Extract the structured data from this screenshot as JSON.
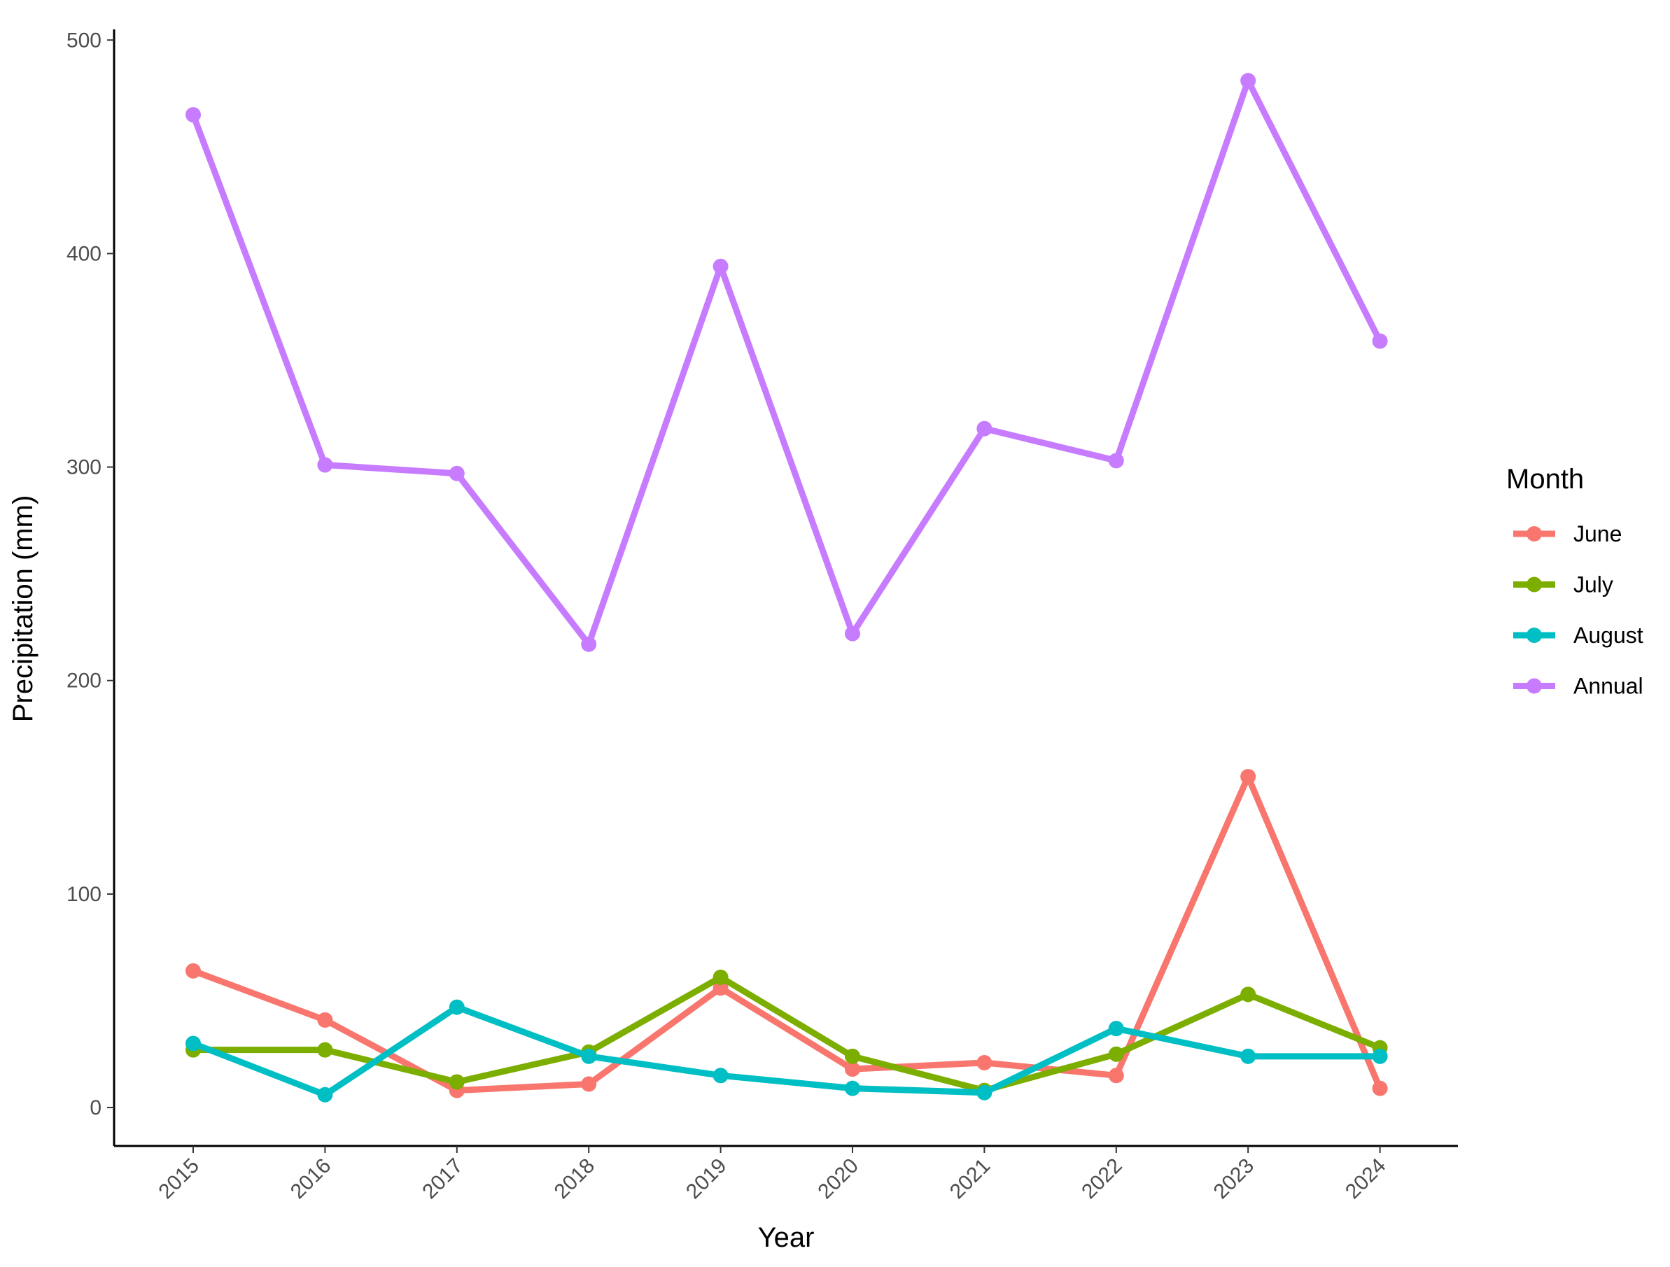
{
  "chart_data": {
    "type": "line",
    "title": "",
    "xlabel": "Year",
    "ylabel": "Precipitation (mm)",
    "x": [
      "2015",
      "2016",
      "2017",
      "2018",
      "2019",
      "2020",
      "2021",
      "2022",
      "2023",
      "2024"
    ],
    "ylim": [
      -18,
      505
    ],
    "yticks": [
      0,
      100,
      200,
      300,
      400,
      500
    ],
    "grid": false,
    "legend": {
      "title": "Month",
      "placement": "right"
    },
    "series": [
      {
        "name": "June",
        "color": "#F8766D",
        "values": [
          64,
          41,
          8,
          11,
          56,
          18,
          21,
          15,
          155,
          9
        ]
      },
      {
        "name": "July",
        "color": "#7CAE00",
        "values": [
          27,
          27,
          12,
          26,
          61,
          24,
          8,
          25,
          53,
          28
        ]
      },
      {
        "name": "August",
        "color": "#00BFC4",
        "values": [
          30,
          6,
          47,
          24,
          15,
          9,
          7,
          37,
          24,
          24
        ]
      },
      {
        "name": "Annual",
        "color": "#C77CFF",
        "values": [
          465,
          301,
          297,
          217,
          394,
          222,
          318,
          303,
          481,
          359
        ]
      }
    ]
  }
}
